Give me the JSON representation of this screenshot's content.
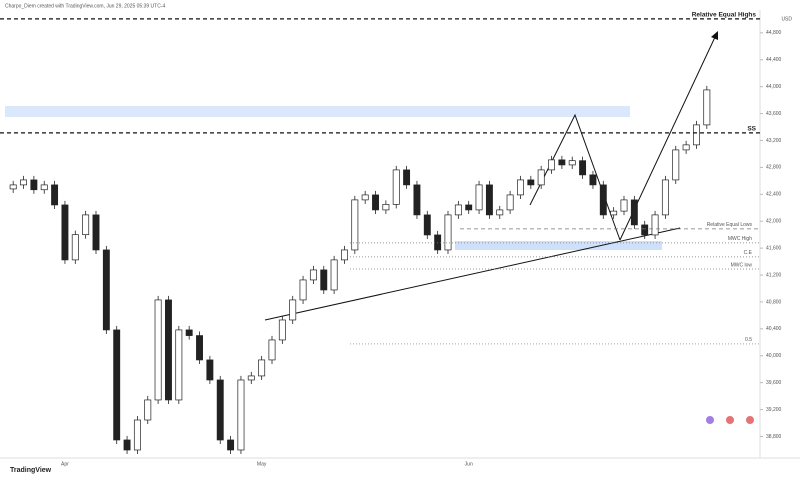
{
  "header": "Charpo_Diem created with TradingView.com, Jun 29, 2025 05:39 UTC-4",
  "footer": "TradingView",
  "chart_data": {
    "type": "candlestick",
    "currency": "USD",
    "categories": [
      null,
      null,
      null,
      null,
      null,
      "Apr",
      null,
      null,
      null,
      null,
      null,
      null,
      null,
      null,
      null,
      null,
      null,
      null,
      null,
      null,
      null,
      null,
      null,
      null,
      "May",
      null,
      null,
      null,
      null,
      null,
      null,
      null,
      null,
      null,
      null,
      null,
      null,
      null,
      null,
      null,
      null,
      null,
      null,
      null,
      "Jun",
      null,
      null,
      null,
      null,
      null,
      null,
      null,
      null,
      null,
      null,
      null,
      null,
      null,
      null,
      null,
      null,
      null,
      null,
      null,
      null,
      null,
      null,
      null
    ],
    "open": [
      42480,
      42540,
      42614,
      42468,
      42540,
      42242,
      41425,
      41800,
      42094,
      41573,
      40384,
      38748,
      38599,
      39045,
      39343,
      40830,
      39343,
      40384,
      40300,
      39938,
      39640,
      38748,
      38599,
      39640,
      39700,
      39938,
      40235,
      40532,
      40830,
      41127,
      41276,
      40978,
      41425,
      41573,
      42317,
      42391,
      42168,
      42250,
      42763,
      42540,
      42094,
      41796,
      41573,
      42094,
      42242,
      42168,
      42540,
      42094,
      42168,
      42391,
      42614,
      42540,
      42763,
      42912,
      42837,
      42900,
      42689,
      42540,
      42094,
      42150,
      42317,
      41945,
      41796,
      42094,
      42614,
      43060,
      43135,
      43432
    ],
    "high": [
      42600,
      42674,
      42674,
      42600,
      42600,
      42302,
      41860,
      42154,
      42154,
      41633,
      40444,
      38808,
      39105,
      39403,
      40890,
      40890,
      40444,
      40444,
      40360,
      39998,
      39700,
      38808,
      39700,
      39760,
      39998,
      40295,
      40592,
      40890,
      41187,
      41336,
      41336,
      41485,
      41633,
      42377,
      42451,
      42451,
      42310,
      42823,
      42823,
      42600,
      42154,
      41856,
      42154,
      42302,
      42302,
      42600,
      42600,
      42228,
      42451,
      42674,
      42674,
      42823,
      42972,
      42972,
      42960,
      42960,
      42749,
      42600,
      42210,
      42377,
      42377,
      42005,
      42154,
      42674,
      43120,
      43195,
      43492,
      44012
    ],
    "low": [
      42420,
      42480,
      42408,
      42408,
      42182,
      41365,
      41365,
      41740,
      41513,
      40324,
      38688,
      38539,
      38539,
      38985,
      39283,
      39283,
      39283,
      40240,
      39878,
      39580,
      38688,
      38539,
      38539,
      39580,
      39640,
      39878,
      40175,
      40472,
      40770,
      41067,
      40918,
      40918,
      41365,
      41513,
      42257,
      42108,
      42108,
      42190,
      42480,
      42034,
      41736,
      41513,
      41513,
      42034,
      42108,
      42108,
      42034,
      42034,
      42108,
      42331,
      42480,
      42480,
      42703,
      42777,
      42777,
      42629,
      42480,
      42034,
      42034,
      42090,
      41885,
      41736,
      41736,
      42034,
      42554,
      43000,
      43075,
      43372
    ],
    "close": [
      42540,
      42614,
      42468,
      42540,
      42242,
      41425,
      41800,
      42094,
      41573,
      40384,
      38748,
      38599,
      39045,
      39343,
      40830,
      39343,
      40384,
      40300,
      39938,
      39640,
      38748,
      38599,
      39640,
      39700,
      39938,
      40235,
      40532,
      40830,
      41127,
      41276,
      40978,
      41425,
      41573,
      42317,
      42391,
      42168,
      42250,
      42763,
      42540,
      42094,
      41796,
      41573,
      42094,
      42242,
      42168,
      42540,
      42094,
      42168,
      42391,
      42614,
      42540,
      42763,
      42912,
      42837,
      42900,
      42689,
      42540,
      42094,
      42150,
      42317,
      41945,
      41796,
      42094,
      42614,
      43060,
      43135,
      43432,
      43952
    ],
    "ylim": [
      38480,
      45140
    ],
    "yticks": [
      {
        "value": 38800,
        "label": "38,800"
      },
      {
        "value": 39200,
        "label": "39,200"
      },
      {
        "value": 39600,
        "label": "39,600"
      },
      {
        "value": 40000,
        "label": "40,000"
      },
      {
        "value": 40400,
        "label": "40,400"
      },
      {
        "value": 40800,
        "label": "40,800"
      },
      {
        "value": 41200,
        "label": "41,200"
      },
      {
        "value": 41600,
        "label": "41,600"
      },
      {
        "value": 42000,
        "label": "42,000"
      },
      {
        "value": 42400,
        "label": "42,400"
      },
      {
        "value": 42800,
        "label": "42,800"
      },
      {
        "value": 43200,
        "label": "43,200"
      },
      {
        "value": 43600,
        "label": "43,600"
      },
      {
        "value": 44000,
        "label": "44,000"
      },
      {
        "value": 44400,
        "label": "44,400"
      },
      {
        "value": 44800,
        "label": "44,800"
      }
    ],
    "levels": [
      {
        "label": "Relative Equal Highs",
        "value": 45008,
        "style": "major"
      },
      {
        "label": "SS",
        "value": 43313,
        "style": "major"
      },
      {
        "label": "Relative Equal Lows",
        "value": 41886,
        "style": "dashed"
      },
      {
        "label": "MWC High",
        "value": 41678,
        "style": "dotted"
      },
      {
        "label": "C.E",
        "value": 41470,
        "style": "dotted"
      },
      {
        "label": "MWC low",
        "value": 41290,
        "style": "dotted"
      },
      {
        "label": "0.5",
        "value": 40176,
        "style": "dotted"
      }
    ]
  }
}
